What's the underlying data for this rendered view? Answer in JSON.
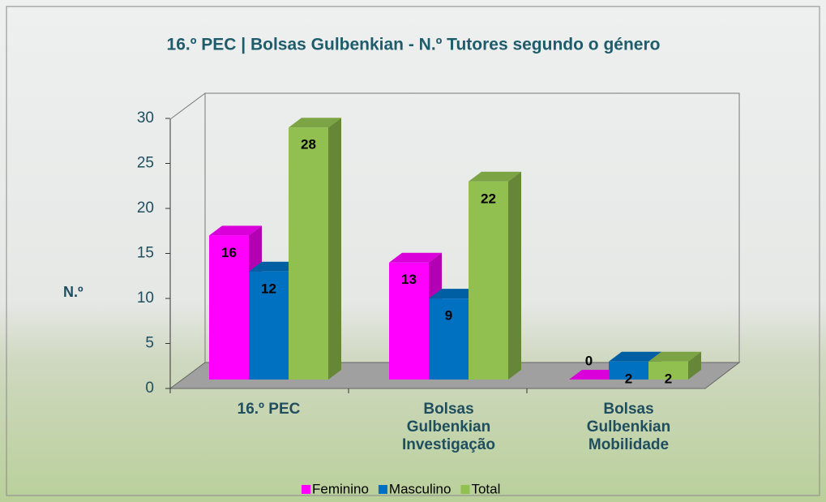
{
  "chart_data": {
    "type": "bar3d",
    "title": "16.º PEC | Bolsas Gulbenkian - N.º Tutores segundo o género",
    "y_label": "N.º",
    "categories": [
      "16.º PEC",
      "Bolsas Gulbenkian Investigação",
      "Bolsas Gulbenkian Mobilidade"
    ],
    "series": [
      {
        "name": "Feminino",
        "color": "#ff00ff",
        "values": [
          16,
          13,
          0
        ]
      },
      {
        "name": "Masculino",
        "color": "#0070c0",
        "values": [
          12,
          9,
          2
        ]
      },
      {
        "name": "Total",
        "color": "#92c050",
        "values": [
          28,
          22,
          2
        ]
      }
    ],
    "ylim": [
      0,
      30
    ],
    "yticks": [
      0,
      5,
      10,
      15,
      20,
      25,
      30
    ],
    "grid": false,
    "legend": "bottom"
  }
}
